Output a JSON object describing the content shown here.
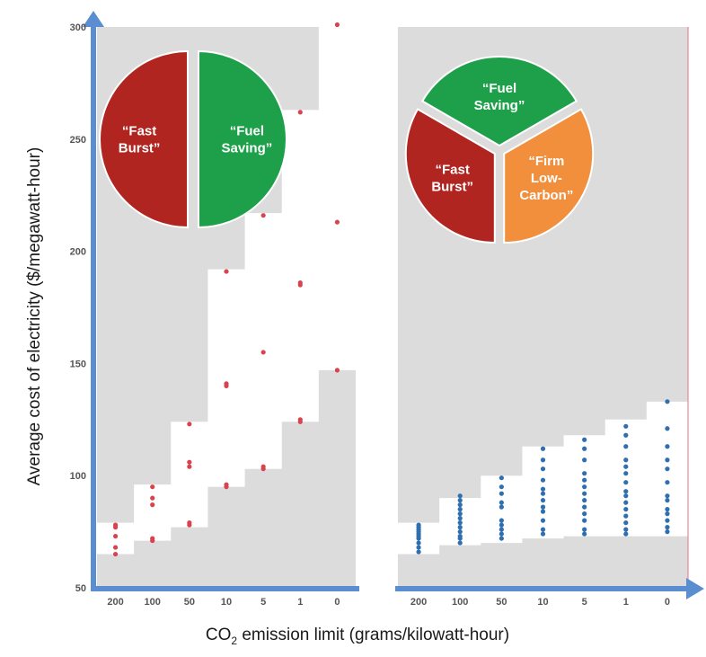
{
  "chart_data": [
    {
      "type": "scatter",
      "panel": "left",
      "categories": [
        "200",
        "100",
        "50",
        "10",
        "5",
        "1",
        "0"
      ],
      "ylim": [
        50,
        300
      ],
      "ylabel": "Average cost of electricity ($/megawatt-hour)",
      "yticks": [
        50,
        100,
        150,
        200,
        250,
        300
      ],
      "band_low": [
        65,
        71,
        77,
        95,
        103,
        124,
        147
      ],
      "band_high": [
        79,
        96,
        124,
        192,
        217,
        263,
        302
      ],
      "points": [
        [
          65,
          68,
          73,
          77,
          78
        ],
        [
          71,
          72,
          87,
          90,
          95
        ],
        [
          78,
          79,
          104,
          106,
          123
        ],
        [
          95,
          96,
          140,
          141,
          191
        ],
        [
          103,
          104,
          155,
          216
        ],
        [
          124,
          125,
          185,
          186,
          262
        ],
        [
          147,
          213,
          301
        ]
      ],
      "point_color": "#d9434e",
      "pie": {
        "segments": [
          {
            "label": [
              "“Fuel",
              "Saving”"
            ],
            "value": 1,
            "color": "#1ea04b"
          },
          {
            "label": [
              "“Fast",
              "Burst”"
            ],
            "value": 1,
            "color": "#b12521"
          }
        ]
      }
    },
    {
      "type": "scatter",
      "panel": "right",
      "categories": [
        "200",
        "100",
        "50",
        "10",
        "5",
        "1",
        "0"
      ],
      "ylim": [
        50,
        300
      ],
      "band_low": [
        65,
        69,
        70,
        72,
        73,
        73,
        73
      ],
      "band_high": [
        79,
        90,
        100,
        113,
        118,
        125,
        133
      ],
      "points": [
        [
          66,
          68,
          70,
          72,
          73,
          74,
          75,
          76,
          77,
          78
        ],
        [
          70,
          72,
          73,
          75,
          77,
          79,
          81,
          83,
          85,
          87,
          89,
          91
        ],
        [
          72,
          74,
          76,
          78,
          80,
          86,
          88,
          92,
          95,
          99
        ],
        [
          74,
          76,
          80,
          84,
          86,
          89,
          92,
          94,
          98,
          103,
          107,
          112
        ],
        [
          74,
          76,
          80,
          83,
          86,
          89,
          92,
          95,
          98,
          101,
          107,
          112,
          116
        ],
        [
          74,
          76,
          79,
          82,
          85,
          88,
          91,
          93,
          97,
          101,
          104,
          107,
          113,
          118,
          122
        ],
        [
          75,
          77,
          80,
          83,
          85,
          89,
          91,
          97,
          103,
          107,
          113,
          121,
          133
        ]
      ],
      "point_color": "#2f6fb0",
      "pie": {
        "segments": [
          {
            "label": [
              "“Fuel",
              "Saving”"
            ],
            "value": 1,
            "color": "#1ea04b"
          },
          {
            "label": [
              "“Firm",
              "Low-",
              "Carbon”"
            ],
            "value": 1,
            "color": "#f18f3c"
          },
          {
            "label": [
              "“Fast",
              "Burst”"
            ],
            "value": 1,
            "color": "#b12521"
          }
        ]
      }
    }
  ],
  "xlabel_main": "CO",
  "xlabel_sub": "2",
  "xlabel_rest": " emission limit (grams/kilowatt-hour)",
  "colors": {
    "background_gray": "#dcdcdc",
    "axis_blue": "#5b8ed1",
    "right_edge": "#e58a94"
  }
}
